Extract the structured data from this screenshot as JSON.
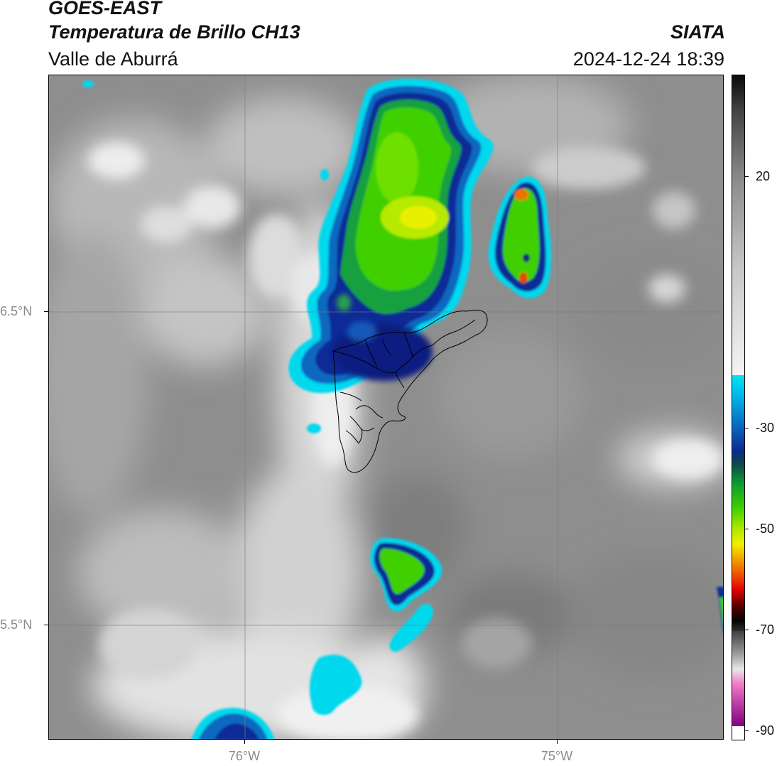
{
  "header": {
    "satellite": "GOES-EAST",
    "product": "Temperatura de Brillo CH13",
    "region": "Valle de Aburrá",
    "agency": "SIATA",
    "datetime": "2024-12-24 18:39"
  },
  "axes": {
    "lat_ticks": [
      "6.5°N",
      "5.5°N"
    ],
    "lon_ticks": [
      "76°W",
      "75°W"
    ]
  },
  "colorbar": {
    "ticks": [
      "20",
      "-30",
      "-50",
      "-70",
      "-90"
    ],
    "tick_values": [
      20,
      -30,
      -50,
      -70,
      -90
    ],
    "range": [
      -92,
      42
    ],
    "units_shown": ""
  },
  "colors": {
    "cold_cloud_cyan": "#00e5f0",
    "cold_cloud_blue": "#0a2a9a",
    "cold_cloud_green": "#3fd400",
    "cold_cloud_yellow": "#e8f000",
    "cold_cloud_orange": "#f07800",
    "background_gray": "#8c8c8c"
  }
}
